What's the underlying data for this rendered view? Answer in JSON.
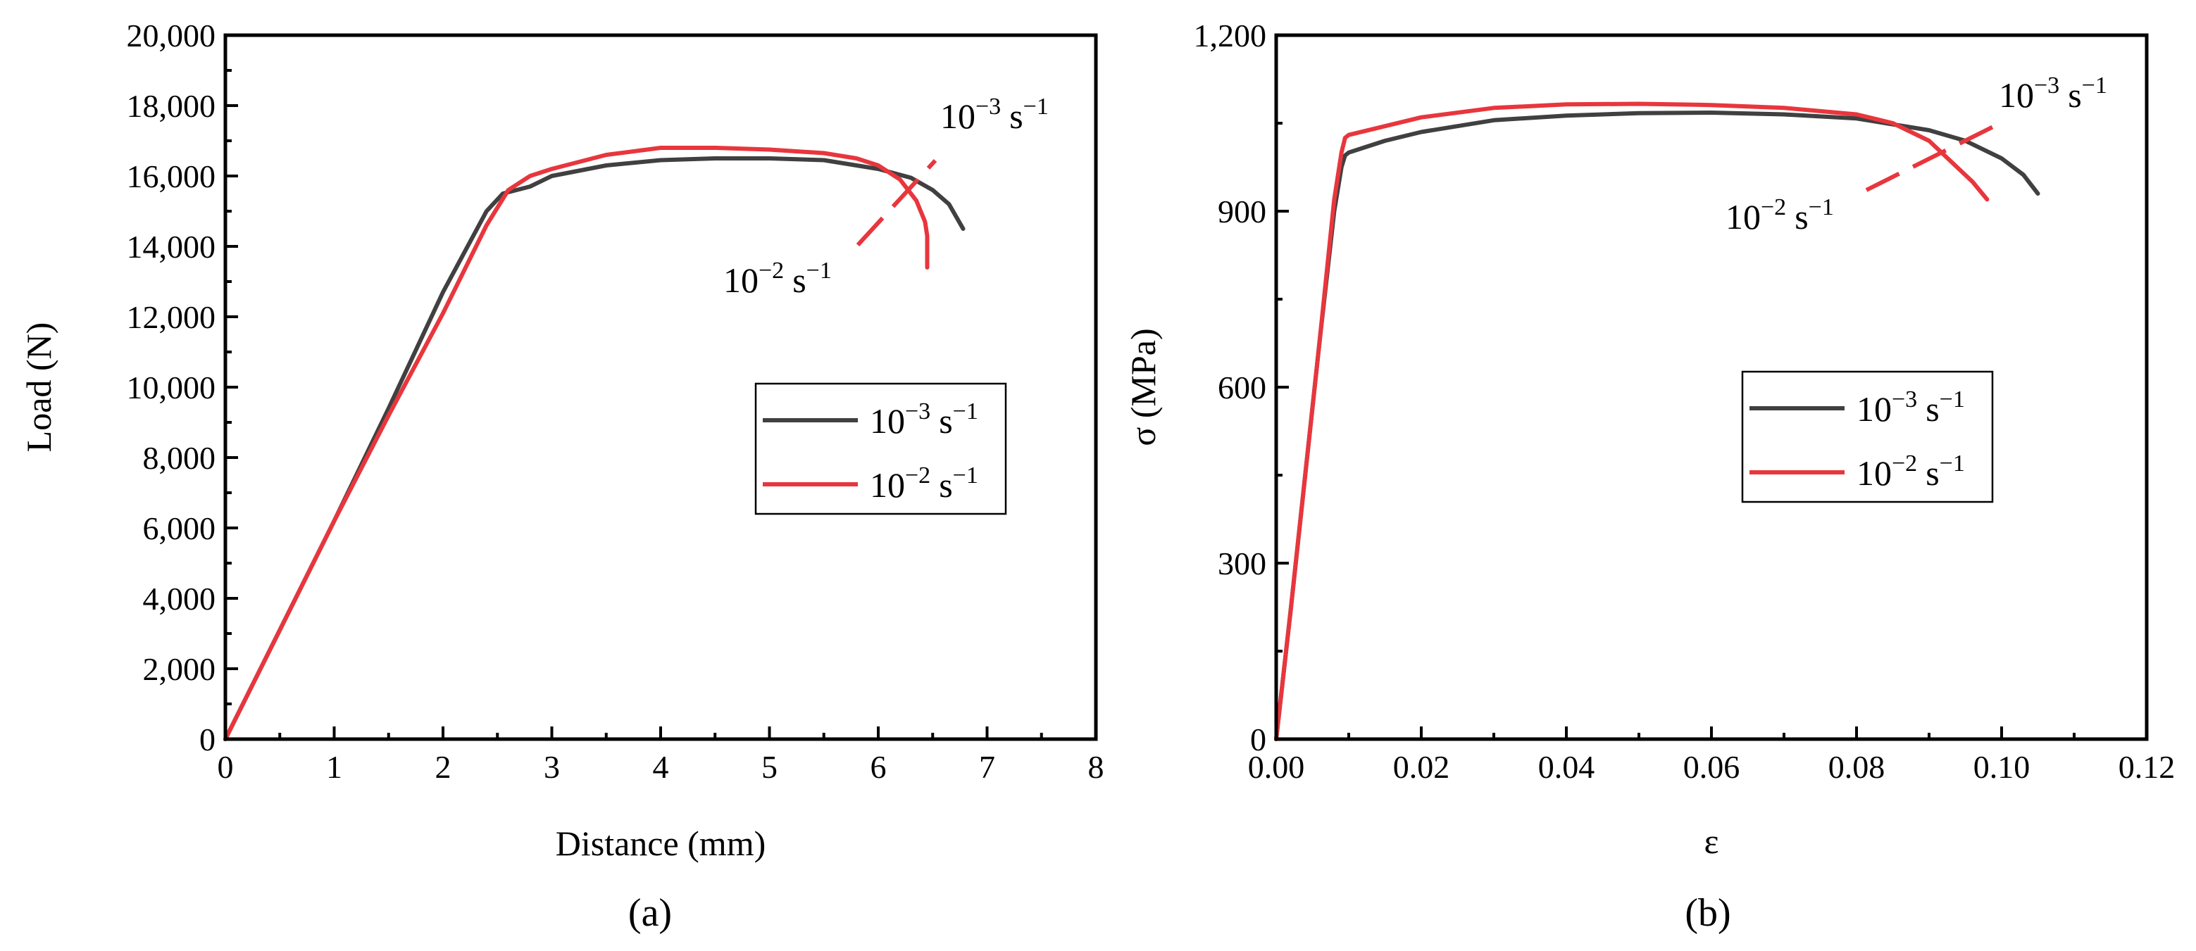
{
  "colors": {
    "rate_1e3": "#404040",
    "rate_1e2": "#e8363d"
  },
  "chart_data": [
    {
      "type": "line",
      "panel_label": "(a)",
      "xlabel": "Distance (mm)",
      "ylabel": "Load (N)",
      "xlim": [
        0,
        8
      ],
      "ylim": [
        0,
        20000
      ],
      "x_ticks": [
        0,
        1,
        2,
        3,
        4,
        5,
        6,
        7,
        8
      ],
      "x_tick_labels": [
        "0",
        "1",
        "2",
        "3",
        "4",
        "5",
        "6",
        "7",
        "8"
      ],
      "y_ticks": [
        0,
        2000,
        4000,
        6000,
        8000,
        10000,
        12000,
        14000,
        16000,
        18000,
        20000
      ],
      "y_tick_labels": [
        "0",
        "2,000",
        "4,000",
        "6,000",
        "8,000",
        "10,000",
        "12,000",
        "14,000",
        "16,000",
        "18,000",
        "20,000"
      ],
      "x_minor_step": 0.5,
      "y_minor_step": 1000,
      "legend": {
        "position": "center-right",
        "entries": [
          {
            "base": "10",
            "exp": "−3",
            "unit": "s",
            "unit_exp": "−1"
          },
          {
            "base": "10",
            "exp": "−2",
            "unit": "s",
            "unit_exp": "−1"
          }
        ]
      },
      "annotations": [
        {
          "base": "10",
          "exp": "−3",
          "unit": "s",
          "unit_exp": "−1"
        },
        {
          "base": "10",
          "exp": "−2",
          "unit": "s",
          "unit_exp": "−1"
        }
      ],
      "series": [
        {
          "x": [
            0,
            0.5,
            1,
            1.5,
            2,
            2.4,
            2.55,
            2.8,
            3,
            3.5,
            4,
            4.5,
            5,
            5.5,
            6,
            6.3,
            6.5,
            6.65,
            6.78
          ],
          "y": [
            0,
            3100,
            6200,
            9400,
            12700,
            15000,
            15500,
            15700,
            16000,
            16300,
            16450,
            16500,
            16500,
            16450,
            16200,
            15950,
            15600,
            15200,
            14500
          ]
        },
        {
          "x": [
            0,
            0.5,
            1,
            1.5,
            2,
            2.4,
            2.6,
            2.8,
            3,
            3.5,
            4,
            4.5,
            5,
            5.5,
            5.8,
            6,
            6.2,
            6.35,
            6.43,
            6.45,
            6.45
          ],
          "y": [
            0,
            3100,
            6200,
            9200,
            12100,
            14600,
            15600,
            16000,
            16200,
            16600,
            16800,
            16800,
            16750,
            16650,
            16500,
            16300,
            15900,
            15300,
            14700,
            14300,
            13400
          ]
        }
      ]
    },
    {
      "type": "line",
      "panel_label": "(b)",
      "xlabel": "ε",
      "ylabel": "σ (MPa)",
      "xlim": [
        0,
        0.12
      ],
      "ylim": [
        0,
        1200
      ],
      "x_ticks": [
        0,
        0.02,
        0.04,
        0.06,
        0.08,
        0.1,
        0.12
      ],
      "x_tick_labels": [
        "0.00",
        "0.02",
        "0.04",
        "0.06",
        "0.08",
        "0.10",
        "0.12"
      ],
      "y_ticks": [
        0,
        300,
        600,
        900,
        1200
      ],
      "y_tick_labels": [
        "0",
        "300",
        "600",
        "900",
        "1,200"
      ],
      "x_minor_step": 0.01,
      "y_minor_step": 150,
      "legend": {
        "position": "center-right",
        "entries": [
          {
            "base": "10",
            "exp": "−3",
            "unit": "s",
            "unit_exp": "−1"
          },
          {
            "base": "10",
            "exp": "−2",
            "unit": "s",
            "unit_exp": "−1"
          }
        ]
      },
      "annotations": [
        {
          "base": "10",
          "exp": "−3",
          "unit": "s",
          "unit_exp": "−1"
        },
        {
          "base": "10",
          "exp": "−2",
          "unit": "s",
          "unit_exp": "−1"
        }
      ],
      "series": [
        {
          "x": [
            0,
            0.002,
            0.004,
            0.006,
            0.008,
            0.009,
            0.0095,
            0.01,
            0.012,
            0.015,
            0.02,
            0.03,
            0.04,
            0.05,
            0.06,
            0.07,
            0.08,
            0.09,
            0.095,
            0.1,
            0.103,
            0.105
          ],
          "y": [
            0,
            220,
            450,
            680,
            900,
            975,
            995,
            1000,
            1008,
            1020,
            1035,
            1055,
            1063,
            1067,
            1068,
            1065,
            1058,
            1038,
            1020,
            990,
            962,
            930
          ]
        },
        {
          "x": [
            0,
            0.002,
            0.004,
            0.006,
            0.008,
            0.009,
            0.0095,
            0.01,
            0.012,
            0.015,
            0.02,
            0.03,
            0.04,
            0.05,
            0.06,
            0.07,
            0.08,
            0.085,
            0.09,
            0.093,
            0.096,
            0.098
          ],
          "y": [
            0,
            220,
            450,
            680,
            920,
            1000,
            1025,
            1030,
            1036,
            1045,
            1060,
            1076,
            1082,
            1083,
            1081,
            1076,
            1065,
            1050,
            1020,
            985,
            950,
            920
          ]
        }
      ]
    }
  ]
}
